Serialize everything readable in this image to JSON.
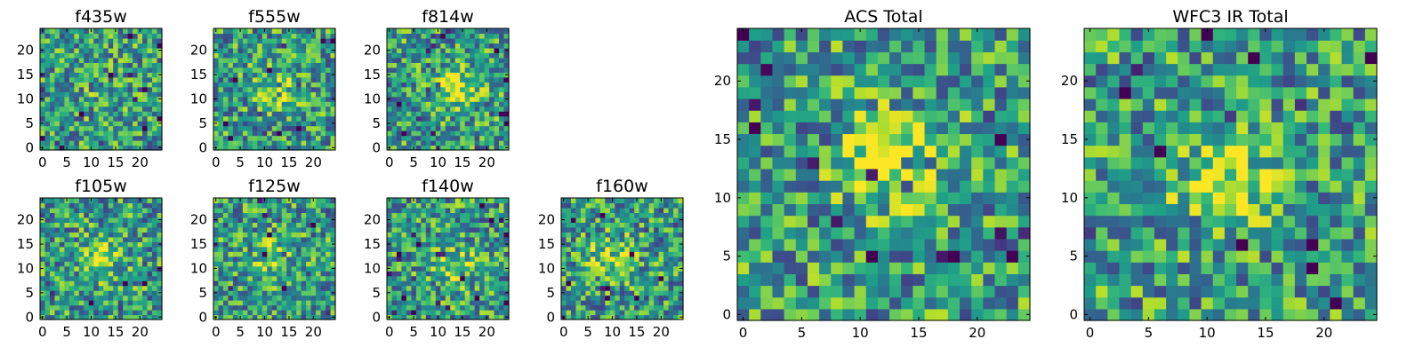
{
  "chart_data": [
    {
      "type": "heatmap",
      "title": "f435w",
      "xticks": [
        "0",
        "5",
        "10",
        "15",
        "20"
      ],
      "yticks": [
        "0",
        "5",
        "10",
        "15",
        "20"
      ],
      "xlim": [
        0,
        24
      ],
      "ylim": [
        0,
        24
      ],
      "grid_size": 25,
      "colormap": "viridis",
      "grid": false,
      "blob_center": [
        13,
        10
      ],
      "blob_strength": 0.08
    },
    {
      "type": "heatmap",
      "title": "f555w",
      "xticks": [
        "0",
        "5",
        "10",
        "15",
        "20"
      ],
      "yticks": [
        "0",
        "5",
        "10",
        "15",
        "20"
      ],
      "xlim": [
        0,
        24
      ],
      "ylim": [
        0,
        24
      ],
      "grid_size": 25,
      "colormap": "viridis",
      "grid": false,
      "blob_center": [
        13,
        12
      ],
      "blob_strength": 0.2
    },
    {
      "type": "heatmap",
      "title": "f814w",
      "xticks": [
        "0",
        "5",
        "10",
        "15",
        "20"
      ],
      "yticks": [
        "0",
        "5",
        "10",
        "15",
        "20"
      ],
      "xlim": [
        0,
        24
      ],
      "ylim": [
        0,
        24
      ],
      "grid_size": 25,
      "colormap": "viridis",
      "grid": false,
      "blob_center": [
        14,
        12
      ],
      "blob_strength": 0.35
    },
    {
      "type": "heatmap",
      "title": "f105w",
      "xticks": [
        "0",
        "5",
        "10",
        "15",
        "20"
      ],
      "yticks": [
        "0",
        "5",
        "10",
        "15",
        "20"
      ],
      "xlim": [
        0,
        24
      ],
      "ylim": [
        0,
        24
      ],
      "grid_size": 25,
      "colormap": "viridis",
      "grid": false,
      "blob_center": [
        12,
        12
      ],
      "blob_strength": 0.3
    },
    {
      "type": "heatmap",
      "title": "f125w",
      "xticks": [
        "0",
        "5",
        "10",
        "15",
        "20"
      ],
      "yticks": [
        "0",
        "5",
        "10",
        "15",
        "20"
      ],
      "xlim": [
        0,
        24
      ],
      "ylim": [
        0,
        24
      ],
      "grid_size": 25,
      "colormap": "viridis",
      "grid": false,
      "blob_center": [
        11,
        12
      ],
      "blob_strength": 0.25
    },
    {
      "type": "heatmap",
      "title": "f140w",
      "xticks": [
        "0",
        "5",
        "10",
        "15",
        "20"
      ],
      "yticks": [
        "0",
        "5",
        "10",
        "15",
        "20"
      ],
      "xlim": [
        0,
        24
      ],
      "ylim": [
        0,
        24
      ],
      "grid_size": 25,
      "colormap": "viridis",
      "grid": false,
      "blob_center": [
        13,
        11
      ],
      "blob_strength": 0.25
    },
    {
      "type": "heatmap",
      "title": "f160w",
      "xticks": [
        "0",
        "5",
        "10",
        "15",
        "20"
      ],
      "yticks": [
        "0",
        "5",
        "10",
        "15",
        "20"
      ],
      "xlim": [
        0,
        24
      ],
      "ylim": [
        0,
        24
      ],
      "grid_size": 25,
      "colormap": "viridis",
      "grid": false,
      "blob_center": [
        10,
        12
      ],
      "blob_strength": 0.3
    },
    {
      "type": "heatmap",
      "title": "ACS Total",
      "xticks": [
        "0",
        "5",
        "10",
        "15",
        "20"
      ],
      "yticks": [
        "0",
        "5",
        "10",
        "15",
        "20"
      ],
      "xlim": [
        0,
        24
      ],
      "ylim": [
        0,
        24
      ],
      "grid_size": 25,
      "colormap": "viridis",
      "grid": false,
      "blob_center": [
        13,
        13
      ],
      "blob_strength": 0.4
    },
    {
      "type": "heatmap",
      "title": "WFC3 IR Total",
      "xticks": [
        "0",
        "5",
        "10",
        "15",
        "20"
      ],
      "yticks": [
        "0",
        "5",
        "10",
        "15",
        "20"
      ],
      "xlim": [
        0,
        24
      ],
      "ylim": [
        0,
        24
      ],
      "grid_size": 25,
      "colormap": "viridis",
      "grid": false,
      "blob_center": [
        12,
        12
      ],
      "blob_strength": 0.4
    }
  ]
}
